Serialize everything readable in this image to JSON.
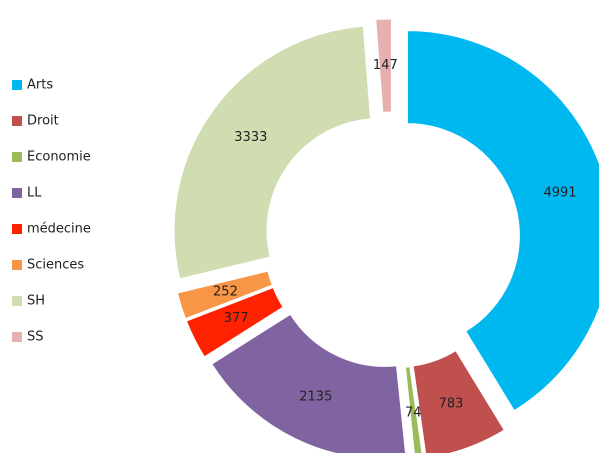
{
  "chart_data": {
    "type": "doughnut",
    "categories": [
      "Arts",
      "Droit",
      "Economie",
      "LL",
      "médecine",
      "Sciences",
      "SH",
      "SS"
    ],
    "values": [
      4991,
      783,
      74,
      2135,
      377,
      252,
      3333,
      147
    ],
    "colors": [
      "#00b8f0",
      "#c0504d",
      "#9bbb59",
      "#8064a2",
      "#ff2200",
      "#f79646",
      "#d0ddb0",
      "#e6b0b0"
    ],
    "legend": "left"
  }
}
